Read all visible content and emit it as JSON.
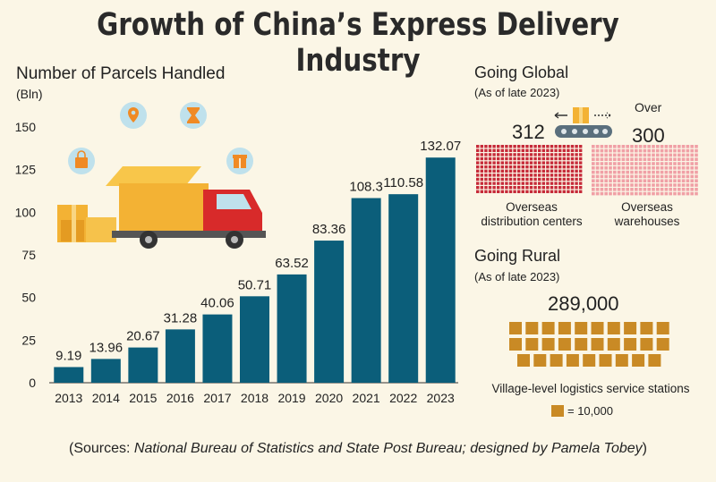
{
  "title": "Growth of China’s Express Delivery Industry",
  "chart_data": {
    "type": "bar",
    "title": "Number of Parcels Handled",
    "ylabel": "(Bln)",
    "categories": [
      "2013",
      "2014",
      "2015",
      "2016",
      "2017",
      "2018",
      "2019",
      "2020",
      "2021",
      "2022",
      "2023"
    ],
    "values": [
      9.19,
      13.96,
      20.67,
      31.28,
      40.06,
      50.71,
      63.52,
      83.36,
      108.3,
      110.58,
      132.07
    ],
    "value_labels": [
      "9.19",
      "13.96",
      "20.67",
      "31.28",
      "40.06",
      "50.71",
      "63.52",
      "83.36",
      "108.3",
      "110.58",
      "132.07"
    ],
    "ylim": [
      0,
      150
    ],
    "yticks": [
      0,
      25,
      50,
      75,
      100,
      125,
      150
    ],
    "grid": false,
    "bar_color": "#0b5e7a"
  },
  "global": {
    "title": "Going Global",
    "subtitle": "(As of late 2023)",
    "distribution_value": "312",
    "warehouse_prefix": "Over",
    "warehouse_value": "300",
    "distribution_label_1": "Overseas",
    "distribution_label_2": "distribution centers",
    "warehouse_label_1": "Overseas",
    "warehouse_label_2": "warehouses",
    "distribution_color": "#c62a39",
    "warehouse_color": "#f0a0a6"
  },
  "rural": {
    "title": "Going Rural",
    "subtitle": "(As of late 2023)",
    "value": "289,000",
    "label": "Village-level logistics service stations",
    "legend": "= 10,000",
    "icon_color": "#c98a25",
    "icon_count": 29
  },
  "sources": {
    "prefix": "(Sources: ",
    "italic": "National Bureau of Statistics and State Post Bureau; designed by Pamela Tobey",
    "suffix": ")"
  },
  "icons": [
    "location-pin-icon",
    "hourglass-icon",
    "shopping-bag-icon",
    "gift-icon",
    "delivery-truck-icon",
    "parcel-box-icon",
    "conveyor-belt-icon"
  ]
}
